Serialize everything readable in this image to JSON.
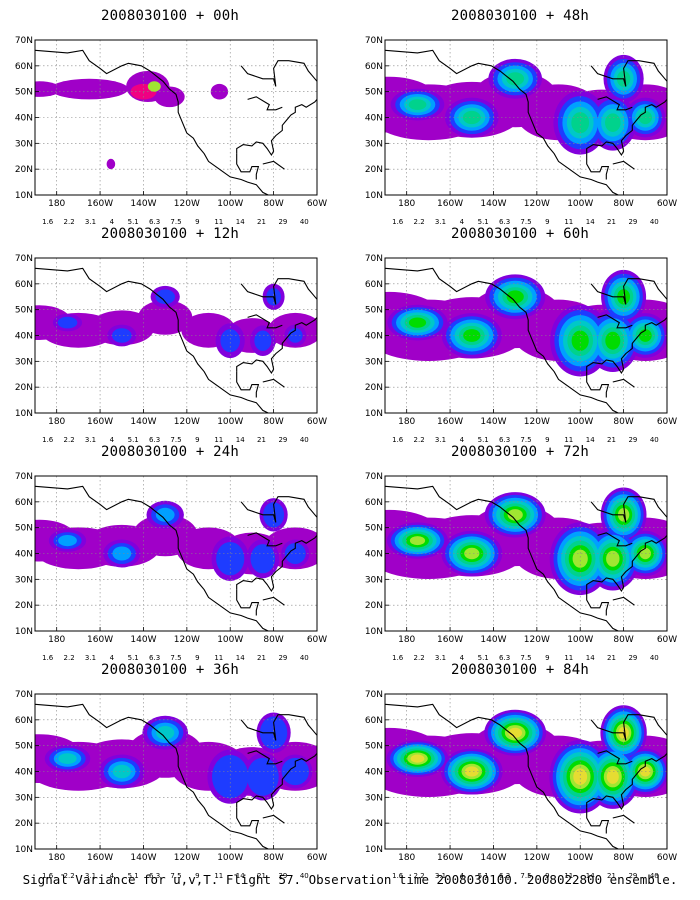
{
  "panels": [
    {
      "title": "2008030100 + 00h",
      "col": 0,
      "row": 0,
      "intensity": 0
    },
    {
      "title": "2008030100 + 12h",
      "col": 0,
      "row": 1,
      "intensity": 1
    },
    {
      "title": "2008030100 + 24h",
      "col": 0,
      "row": 2,
      "intensity": 2
    },
    {
      "title": "2008030100 + 36h",
      "col": 0,
      "row": 3,
      "intensity": 3
    },
    {
      "title": "2008030100 + 48h",
      "col": 1,
      "row": 0,
      "intensity": 4
    },
    {
      "title": "2008030100 + 60h",
      "col": 1,
      "row": 1,
      "intensity": 5
    },
    {
      "title": "2008030100 + 72h",
      "col": 1,
      "row": 2,
      "intensity": 6
    },
    {
      "title": "2008030100 + 84h",
      "col": 1,
      "row": 3,
      "intensity": 7
    }
  ],
  "lat_labels": [
    "70N",
    "60N",
    "50N",
    "40N",
    "30N",
    "20N",
    "10N"
  ],
  "lon_labels": [
    "180",
    "160W",
    "140W",
    "120W",
    "100W",
    "80W",
    "60W"
  ],
  "colorbar": {
    "labels": [
      "1.6",
      "2.2",
      "3.1",
      "4",
      "5.1",
      "6.3",
      "7.5",
      "9",
      "11",
      "14",
      "21",
      "29",
      "40"
    ],
    "colors": [
      "#a000c8",
      "#8200dc",
      "#1e3cff",
      "#00a0ff",
      "#00c8c8",
      "#00d28c",
      "#00dc00",
      "#a0e632",
      "#e6dc32",
      "#e6af2d",
      "#f08228",
      "#fa3c3c",
      "#f00082"
    ]
  },
  "footer": "Signal Variance for u,v,T. Flight 57. Observation time 2008030100. 2008022800 ensemble."
}
